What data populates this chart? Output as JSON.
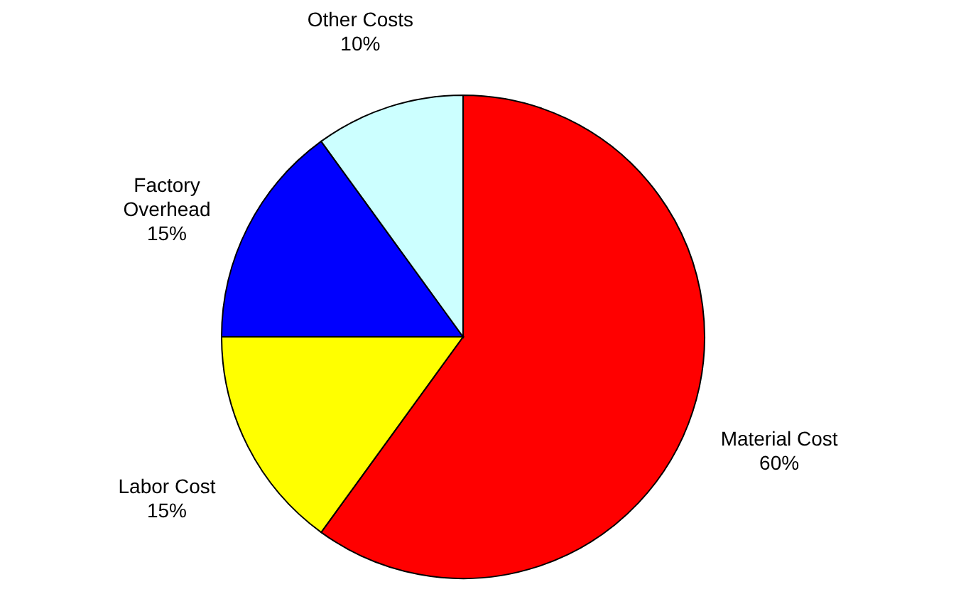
{
  "chart_data": {
    "type": "pie",
    "categories": [
      "Material Cost",
      "Labor Cost",
      "Factory Overhead",
      "Other Costs"
    ],
    "values": [
      60,
      15,
      15,
      10
    ],
    "value_labels": [
      "60%",
      "15%",
      "15%",
      "10%"
    ],
    "colors": [
      "#ff0000",
      "#ffff00",
      "#0000ff",
      "#ccffff"
    ]
  }
}
